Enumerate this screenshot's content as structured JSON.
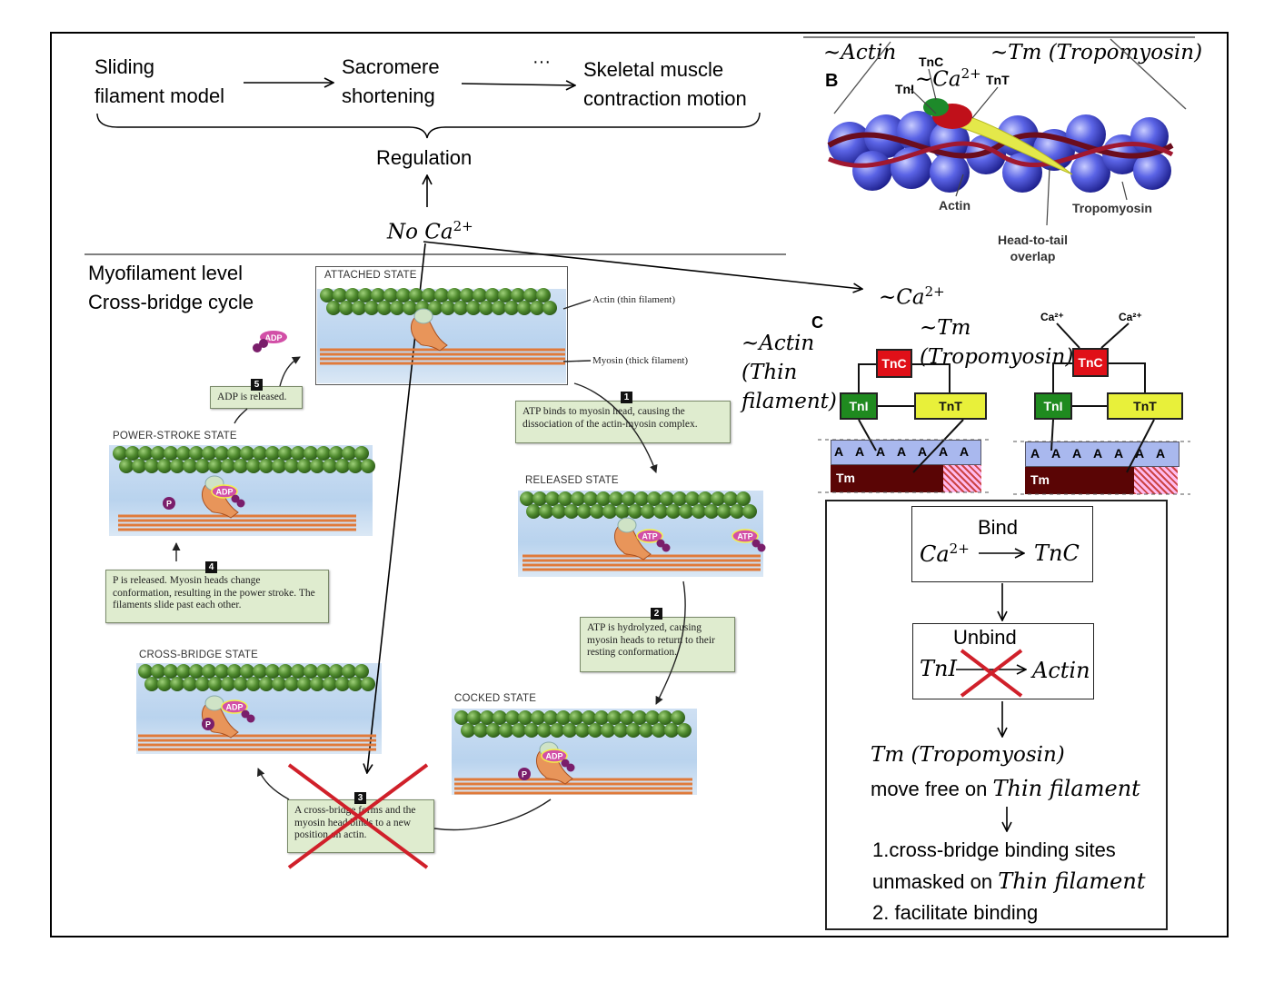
{
  "flow": {
    "sliding_1": "Sliding",
    "sliding_2": "filament model",
    "sarcomere_1": "Sacromere",
    "sarcomere_2": "shortening",
    "ellipsis": "···",
    "skeletal_1": "Skeletal muscle",
    "skeletal_2": "contraction motion",
    "regulation": "Regulation",
    "no_ca": "No Ca",
    "no_ca_sup": "2+",
    "ca_right": "~Ca",
    "ca_right_sup": "2+"
  },
  "left": {
    "level": "Myofilament level",
    "cycle": "Cross-bridge cycle"
  },
  "cycle": {
    "attached": "ATTACHED STATE",
    "actin_label": "Actin (thin filament)",
    "myosin_label": "Myosin (thick filament)",
    "step1_num": "1",
    "step1": "ATP binds to myosin head, causing the dissociation of the actin-myosin complex.",
    "released": "RELEASED STATE",
    "step2_num": "2",
    "step2": "ATP is hydrolyzed, causing myosin heads to return to their resting conformation.",
    "cocked": "COCKED STATE",
    "step3_num": "3",
    "step3": "A cross-bridge forms and the myosin head binds to a new position on actin.",
    "crossbridge": "CROSS-BRIDGE STATE",
    "step4_num": "4",
    "step4": "P is released. Myosin heads change conformation, resulting in the power stroke. The filaments slide past each other.",
    "powerstroke": "POWER-STROKE STATE",
    "step5_num": "5",
    "step5": "ADP is released.",
    "adp": "ADP",
    "atp": "ATP",
    "p": "P"
  },
  "panel_b": {
    "letter": "B",
    "actin_annot": "~Actin",
    "tm_annot": "~Tm (Tropomyosin)",
    "ca_annot": "~Ca",
    "ca_annot_sup": "2+",
    "tnc": "TnC",
    "tni": "TnI",
    "tnt": "TnT",
    "actin": "Actin",
    "tropomyosin": "Tropomyosin",
    "overlap_1": "Head-to-tail",
    "overlap_2": "overlap"
  },
  "panel_c": {
    "letter": "C",
    "actin_annot_1": "~Actin",
    "actin_annot_2": "(Thin",
    "actin_annot_3": "filament)",
    "tm_annot_1": "~Tm",
    "tm_annot_2": "(Tropomyosin)",
    "ca": "Ca²⁺",
    "tnc": "TnC",
    "tni": "TnI",
    "tnt": "TnT",
    "a": "A",
    "tm": "Tm"
  },
  "mechanism": {
    "bind": "Bind",
    "ca": "Ca",
    "ca_sup": "2+",
    "tnc": "TnC",
    "unbind": "Unbind",
    "tni": "TnI",
    "actin": "Actin",
    "tm": "Tm (Tropomyosin)",
    "move_prefix": "move free on ",
    "thin_filament": "Thin filament",
    "item1": "1.cross-bridge binding sites",
    "item1b_prefix": "unmasked on ",
    "item2": "2. facilitate binding"
  },
  "colors": {
    "actin_bead": "#4f8a2e",
    "myosin_thick": "#e07a3a",
    "myosin_head": "#e8955a",
    "note_bg": "#dfeccf",
    "cross_red": "#d0202a",
    "tnc_red": "#e01018",
    "tni_green": "#1f8a1f",
    "tnt_yellow": "#e8f03a",
    "actin_blue": "#a9b8ee",
    "tm_maroon": "#5a0505"
  }
}
